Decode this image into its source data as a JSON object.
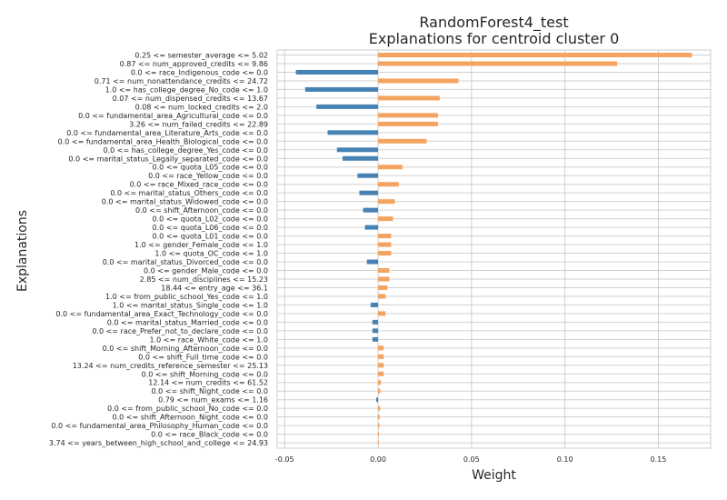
{
  "chart_data": {
    "type": "bar",
    "orientation": "horizontal",
    "title_lines": [
      "RandomForest4_test",
      "Explanations for centroid cluster 0"
    ],
    "xlabel": "Weight",
    "ylabel": "Explanations",
    "xlim": [
      -0.054,
      0.178
    ],
    "xticks": [
      -0.05,
      0.0,
      0.05,
      0.1,
      0.15
    ],
    "xtick_labels": [
      "-0.05",
      "0.00",
      "0.05",
      "0.10",
      "0.15"
    ],
    "grid": true,
    "colors": {
      "positive": "#f4a460",
      "negative": "#4682b4",
      "grid": "#d0d0d0",
      "axes": "#cccccc",
      "text": "#262626"
    },
    "categories": [
      "0.25 <= semester_average <= 5.02",
      "0.87 <= num_approved_credits <= 9.86",
      "0.0 <= race_Indigenous_code <= 0.0",
      "0.71 <= num_nonattendance_credits <= 24.72",
      "1.0 <= has_college_degree_No_code <= 1.0",
      "0.07 <= num_dispensed_credits <= 13.67",
      "0.08 <= num_locked_credits <= 2.0",
      "0.0 <= fundamental_area_Agricultural_code <= 0.0",
      "3.26 <= num_failed_credits <= 22.89",
      "0.0 <= fundamental_area_Literature_Arts_code <= 0.0",
      "0.0 <= fundamental_area_Health_Biological_code <= 0.0",
      "0.0 <= has_college_degree_Yes_code <= 0.0",
      "0.0 <= marital_status_Legally_separated_code <= 0.0",
      "0.0 <= quota_L05_code <= 0.0",
      "0.0 <= race_Yellow_code <= 0.0",
      "0.0 <= race_Mixed_race_code <= 0.0",
      "0.0 <= marital_status_Others_code <= 0.0",
      "0.0 <= marital_status_Widowed_code <= 0.0",
      "0.0 <= shift_Afternoon_code <= 0.0",
      "0.0 <= quota_L02_code <= 0.0",
      "0.0 <= quota_L06_code <= 0.0",
      "0.0 <= quota_L01_code <= 0.0",
      "1.0 <= gender_Female_code <= 1.0",
      "1.0 <= quota_OC_code <= 1.0",
      "0.0 <= marital_status_Divorced_code <= 0.0",
      "0.0 <= gender_Male_code <= 0.0",
      "2.85 <= num_disciplines <= 15.23",
      "18.44 <= entry_age <= 36.1",
      "1.0 <= from_public_school_Yes_code <= 1.0",
      "1.0 <= marital_status_Single_code <= 1.0",
      "0.0 <= fundamental_area_Exact_Technology_code <= 0.0",
      "0.0 <= marital_status_Married_code <= 0.0",
      "0.0 <= race_Prefer_not_to_declare_code <= 0.0",
      "1.0 <= race_White_code <= 1.0",
      "0.0 <= shift_Morning_Afternoon_code <= 0.0",
      "0.0 <= shift_Full_time_code <= 0.0",
      "13.24 <= num_credits_reference_semester <= 25.13",
      "0.0 <= shift_Morning_code <= 0.0",
      "12.14 <= num_credits <= 61.52",
      "0.0 <= shift_Night_code <= 0.0",
      "0.79 <= num_exams <= 1.16",
      "0.0 <= from_public_school_No_code <= 0.0",
      "0.0 <= shift_Afternoon_Night_code <= 0.0",
      "0.0 <= fundamental_area_Philosophy_Human_code <= 0.0",
      "0.0 <= race_Black_code <= 0.0",
      "3.74 <= years_between_high_school_and_college <= 24.93"
    ],
    "values": [
      0.168,
      0.128,
      -0.044,
      0.043,
      -0.039,
      0.033,
      -0.033,
      0.032,
      0.032,
      -0.027,
      0.026,
      -0.022,
      -0.019,
      0.013,
      -0.011,
      0.011,
      -0.01,
      0.009,
      -0.008,
      0.008,
      -0.007,
      0.007,
      0.007,
      0.007,
      -0.006,
      0.006,
      0.006,
      0.005,
      0.004,
      -0.004,
      0.004,
      -0.003,
      -0.003,
      -0.003,
      0.003,
      0.003,
      0.003,
      0.003,
      0.0015,
      0.0012,
      -0.001,
      0.0011,
      0.0009,
      0.0007,
      0.0005,
      0.0003
    ]
  }
}
